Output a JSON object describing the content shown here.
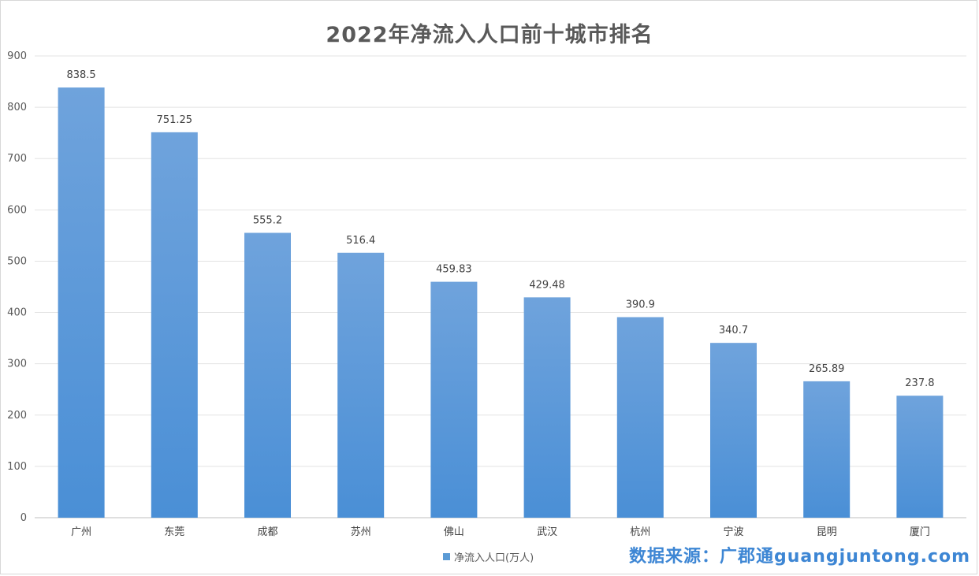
{
  "chart_data": {
    "type": "bar",
    "title": "2022年净流入人口前十城市排名",
    "categories": [
      "广州",
      "东莞",
      "成都",
      "苏州",
      "佛山",
      "武汉",
      "杭州",
      "宁波",
      "昆明",
      "厦门"
    ],
    "series": [
      {
        "name": "净流入人口(万人)",
        "values": [
          838.5,
          751.25,
          555.2,
          516.4,
          459.83,
          429.48,
          390.9,
          340.7,
          265.89,
          237.8
        ]
      }
    ],
    "data_labels": [
      "838.5",
      "751.25",
      "555.2",
      "516.4",
      "459.83",
      "429.48",
      "390.9",
      "340.7",
      "265.89",
      "237.8"
    ],
    "y_ticks": [
      0,
      100,
      200,
      300,
      400,
      500,
      600,
      700,
      800,
      900
    ],
    "ylim": [
      0,
      900
    ],
    "xlabel": "",
    "ylabel": "",
    "grid": true,
    "legend_position": "bottom",
    "bar_color": "#5b9bd5"
  },
  "watermark": "数据来源：广郡通guangjuntong.com"
}
